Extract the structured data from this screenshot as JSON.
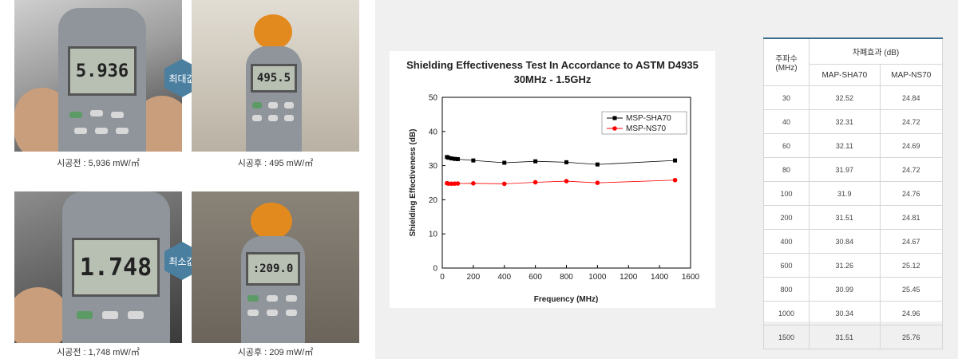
{
  "photos": [
    {
      "reading": "5.936",
      "caption": "시공전 : 5,936 mW/㎡"
    },
    {
      "reading": "495.5",
      "caption": "시공후 : 495 mW/㎡"
    },
    {
      "reading": "1.748",
      "caption": "시공전 : 1,748 mW/㎡"
    },
    {
      "reading": ":209.0",
      "caption": "시공후 : 209 mW/㎡"
    }
  ],
  "badges": {
    "max": "최대값",
    "min": "최소값"
  },
  "colors": {
    "badge": "#4a7fa0",
    "series1": "#000000",
    "series2": "#ff0000",
    "table_accent": "#3a6d8c"
  },
  "chart_data": {
    "type": "line",
    "title": "Shielding Effectiveness Test In Accordance to ASTM D4935",
    "subtitle": "30MHz - 1.5GHz",
    "xlabel": "Frequency (MHz)",
    "ylabel": "Shielding Effectiveness (dB)",
    "xlim": [
      0,
      1600
    ],
    "ylim": [
      0,
      50
    ],
    "xticks": [
      "0",
      "200",
      "400",
      "600",
      "800",
      "1000",
      "1200",
      "1400",
      "1600"
    ],
    "yticks": [
      "0",
      "10",
      "20",
      "30",
      "40",
      "50"
    ],
    "legend_position": "top-right",
    "x": [
      30,
      40,
      60,
      80,
      100,
      200,
      400,
      600,
      800,
      1000,
      1500
    ],
    "series": [
      {
        "name": "MSP-SHA70",
        "color": "#000000",
        "marker": "square",
        "values": [
          32.52,
          32.31,
          32.11,
          31.97,
          31.9,
          31.51,
          30.84,
          31.26,
          30.99,
          30.34,
          31.51
        ]
      },
      {
        "name": "MSP-NS70",
        "color": "#ff0000",
        "marker": "circle",
        "values": [
          24.84,
          24.72,
          24.69,
          24.72,
          24.76,
          24.81,
          24.67,
          25.12,
          25.45,
          24.96,
          25.76
        ]
      }
    ]
  },
  "table": {
    "freq_header": "주파수",
    "freq_unit": "(MHz)",
    "effect_header": "차폐효과 (dB)",
    "col1": "MAP-SHA70",
    "col2": "MAP-NS70",
    "rows": [
      [
        "30",
        "32.52",
        "24.84"
      ],
      [
        "40",
        "32.31",
        "24.72"
      ],
      [
        "60",
        "32.11",
        "24.69"
      ],
      [
        "80",
        "31.97",
        "24.72"
      ],
      [
        "100",
        "31.9",
        "24.76"
      ],
      [
        "200",
        "31.51",
        "24.81"
      ],
      [
        "400",
        "30.84",
        "24.67"
      ],
      [
        "600",
        "31.26",
        "25.12"
      ],
      [
        "800",
        "30.99",
        "25.45"
      ],
      [
        "1000",
        "30.34",
        "24.96"
      ],
      [
        "1500",
        "31.51",
        "25.76"
      ]
    ]
  }
}
